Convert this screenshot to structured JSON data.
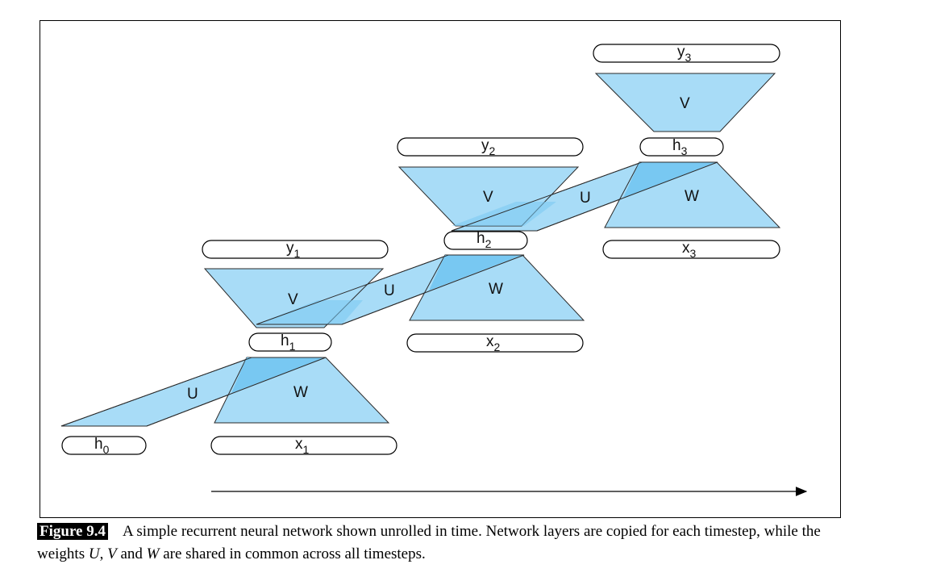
{
  "diagram": {
    "nodes": {
      "h0": {
        "base": "h",
        "sub": "0"
      },
      "x1": {
        "base": "x",
        "sub": "1"
      },
      "h1": {
        "base": "h",
        "sub": "1"
      },
      "y1": {
        "base": "y",
        "sub": "1"
      },
      "x2": {
        "base": "x",
        "sub": "2"
      },
      "h2": {
        "base": "h",
        "sub": "2"
      },
      "y2": {
        "base": "y",
        "sub": "2"
      },
      "x3": {
        "base": "x",
        "sub": "3"
      },
      "h3": {
        "base": "h",
        "sub": "3"
      },
      "y3": {
        "base": "y",
        "sub": "3"
      }
    },
    "weights": {
      "W1": "W",
      "W2": "W",
      "W3": "W",
      "V1": "V",
      "V2": "V",
      "V3": "V",
      "U1": "U",
      "U2": "U",
      "U3": "U"
    },
    "colors": {
      "fill": "#a8dcf7",
      "overlap": "#78c8f2",
      "stroke": "#2a2a2a"
    }
  },
  "caption": {
    "figure_label": "Figure 9.4",
    "part1": "A simple recurrent neural network shown unrolled in time. Network layers are copied for each timestep, while the weights ",
    "U": "U",
    "sep1": ", ",
    "V": "V",
    "and": " and ",
    "W": "W",
    "part2": " are shared in common across all timesteps."
  }
}
